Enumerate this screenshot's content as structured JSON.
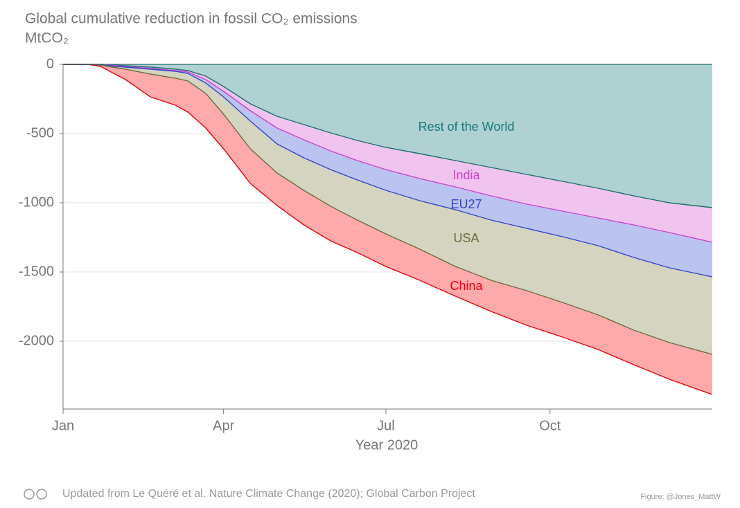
{
  "chart_data": {
    "type": "stacked_area",
    "title": "Global cumulative reduction in fossil CO₂ emissions",
    "y_label": "MtCO₂",
    "x_label": "Year 2020",
    "footer": "Updated from Le Quéré et al. Nature Climate Change (2020); Global Carbon Project",
    "credit": "Figure: @Jones_MattW",
    "x": [
      0,
      14,
      21,
      35,
      49,
      63,
      70,
      80,
      90,
      105,
      120,
      135,
      150,
      165,
      181,
      200,
      220,
      240,
      260,
      280,
      300,
      320,
      340,
      364
    ],
    "xlim": [
      0,
      364
    ],
    "xticks": [
      {
        "value": 0,
        "label": "Jan"
      },
      {
        "value": 90,
        "label": "Apr"
      },
      {
        "value": 181,
        "label": "Jul"
      },
      {
        "value": 273,
        "label": "Oct"
      }
    ],
    "ylim": [
      -2490,
      0
    ],
    "yticks": [
      0,
      -500,
      -1000,
      -1500,
      -2000
    ],
    "grid": true,
    "series": [
      {
        "name": "Rest of the World",
        "color": "#b0d1d2",
        "line_color": "#1a6e6e",
        "label_color": "#137a7a",
        "values": [
          0,
          0,
          0,
          -10,
          -20,
          -35,
          -45,
          -85,
          -160,
          -285,
          -375,
          -435,
          -495,
          -550,
          -600,
          -645,
          -695,
          -745,
          -795,
          -845,
          -895,
          -950,
          -1000,
          -1035
        ]
      },
      {
        "name": "India",
        "color": "#f0c4ef",
        "line_color": "#cc44cc",
        "label_color": "#c844c8",
        "values": [
          0,
          0,
          0,
          -5,
          -10,
          -10,
          -10,
          -25,
          -35,
          -50,
          -85,
          -110,
          -130,
          -145,
          -160,
          -180,
          -190,
          -205,
          -215,
          -215,
          -215,
          -210,
          -215,
          -250
        ]
      },
      {
        "name": "EU27",
        "color": "#bbc3f0",
        "line_color": "#3344cc",
        "label_color": "#3344cc",
        "values": [
          0,
          0,
          -5,
          -5,
          -5,
          -5,
          -10,
          -25,
          -40,
          -75,
          -115,
          -130,
          -135,
          -140,
          -150,
          -160,
          -165,
          -175,
          -175,
          -185,
          -200,
          -235,
          -255,
          -250
        ]
      },
      {
        "name": "USA",
        "color": "#d5d4c0",
        "line_color": "#6b6b3a",
        "label_color": "#6b6b3a",
        "values": [
          0,
          0,
          0,
          -15,
          -35,
          -50,
          -55,
          -75,
          -125,
          -200,
          -210,
          -235,
          -265,
          -290,
          -315,
          -350,
          -410,
          -435,
          -450,
          -475,
          -500,
          -525,
          -540,
          -560
        ]
      },
      {
        "name": "China",
        "color": "#ffaaaa",
        "line_color": "#e8000d",
        "label_color": "#e8000d",
        "values": [
          0,
          0,
          -10,
          -75,
          -165,
          -195,
          -225,
          -250,
          -250,
          -250,
          -235,
          -250,
          -250,
          -235,
          -235,
          -225,
          -215,
          -225,
          -250,
          -250,
          -250,
          -250,
          -265,
          -290
        ]
      }
    ]
  }
}
